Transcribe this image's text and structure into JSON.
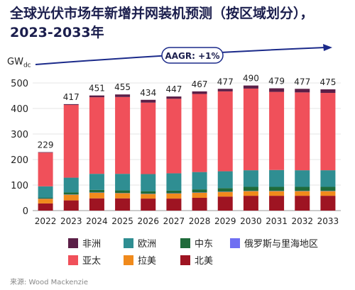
{
  "title": "全球光伏市场年新增并网装机预测（按区域划分），2023-2033年",
  "unit_main": "GW",
  "unit_sub": "dc",
  "source": "来源: Wood Mackenzie",
  "aagr_label": "AAGR: +1%",
  "colors": {
    "非洲": "#5b1f47",
    "欧洲": "#2f8e92",
    "中东": "#1f6b3a",
    "俄罗斯与里海地区": "#6f6ff2",
    "亚太": "#f0505a",
    "拉美": "#f08a1c",
    "北美": "#9e1422",
    "arrow": "#1b2a8a",
    "axis_text": "#222222",
    "grid": "#e6e6e6"
  },
  "chart_data": {
    "type": "bar",
    "stacked": true,
    "categories": [
      "2022",
      "2023",
      "2024",
      "2025",
      "2026",
      "2027",
      "2028",
      "2029",
      "2030",
      "2031",
      "2032",
      "2033"
    ],
    "totals": [
      229,
      417,
      451,
      455,
      434,
      447,
      467,
      477,
      490,
      479,
      477,
      475
    ],
    "series": [
      {
        "name": "北美",
        "values": [
          28,
          40,
          48,
          48,
          47,
          47,
          50,
          55,
          58,
          58,
          58,
          58
        ]
      },
      {
        "name": "拉美",
        "values": [
          18,
          22,
          22,
          20,
          18,
          20,
          20,
          18,
          18,
          18,
          18,
          18
        ]
      },
      {
        "name": "俄罗斯与里海地区",
        "values": [
          1,
          1,
          1,
          1,
          1,
          1,
          1,
          1,
          1,
          1,
          1,
          1
        ]
      },
      {
        "name": "中东",
        "values": [
          3,
          8,
          10,
          10,
          10,
          10,
          12,
          14,
          16,
          16,
          16,
          16
        ]
      },
      {
        "name": "欧洲",
        "values": [
          45,
          58,
          63,
          65,
          67,
          68,
          68,
          66,
          65,
          66,
          65,
          65
        ]
      },
      {
        "name": "亚太",
        "values": [
          132,
          285,
          300,
          301,
          280,
          292,
          306,
          313,
          320,
          306,
          305,
          303
        ]
      },
      {
        "name": "非洲",
        "values": [
          2,
          3,
          7,
          10,
          11,
          9,
          10,
          10,
          12,
          14,
          14,
          14
        ]
      }
    ],
    "ylim": [
      0,
      500
    ],
    "yticks": [
      0,
      100,
      200,
      300,
      400,
      500
    ],
    "grid": true,
    "legend_position": "bottom",
    "legend_order": [
      "非洲",
      "欧洲",
      "中东",
      "俄罗斯与里海地区",
      "亚太",
      "拉美",
      "北美"
    ]
  }
}
